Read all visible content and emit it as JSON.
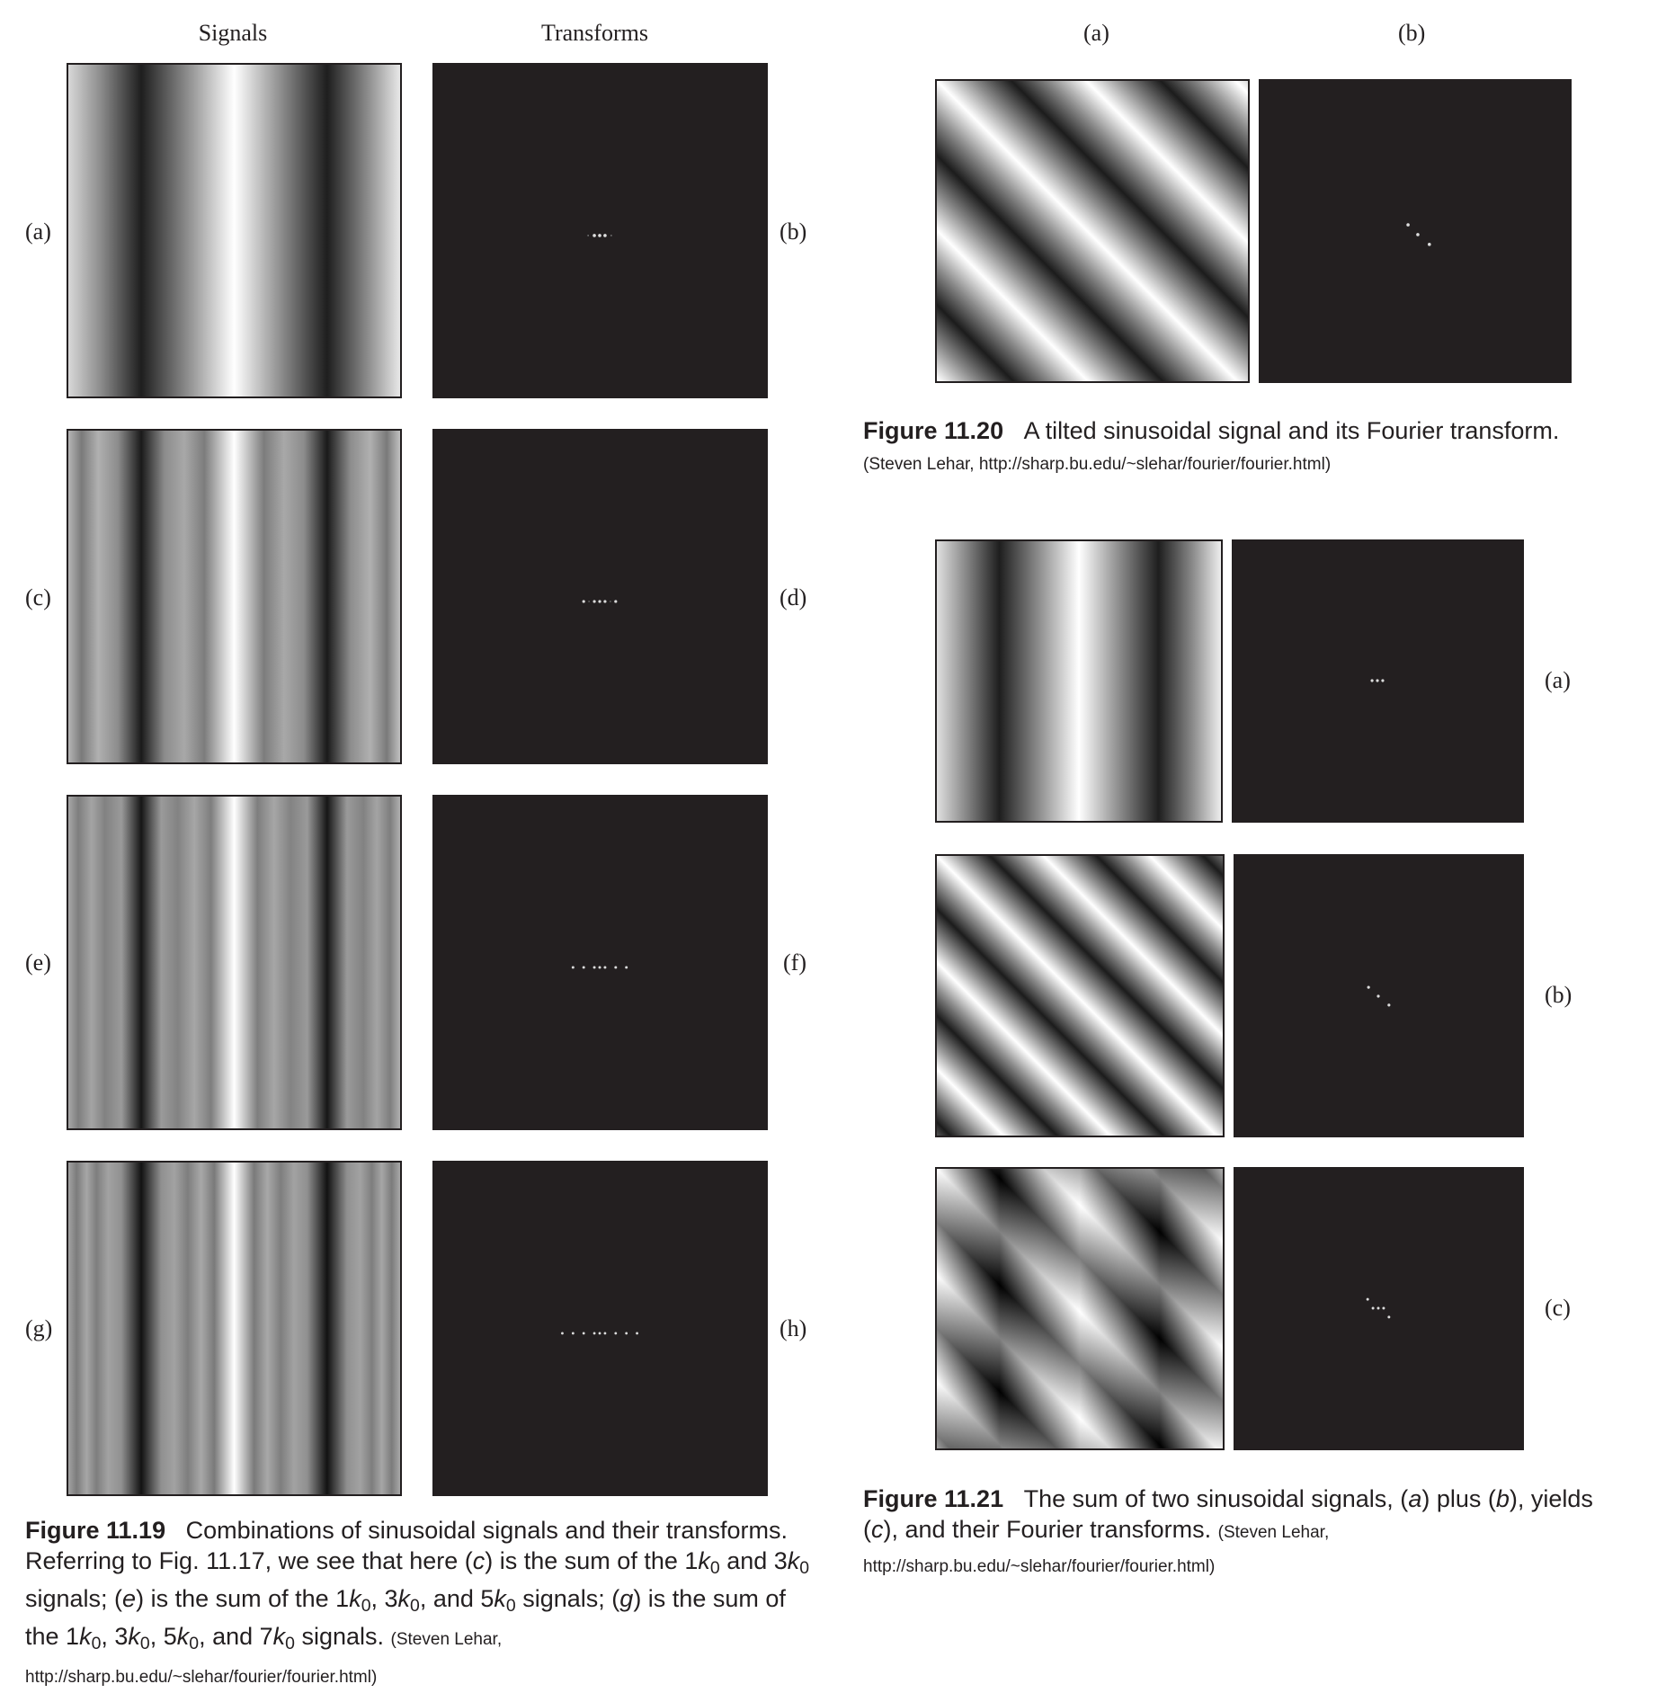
{
  "fig19": {
    "col_headers": {
      "signals": "Signals",
      "transforms": "Transforms"
    },
    "row_labels_left": [
      "(a)",
      "(c)",
      "(e)",
      "(g)"
    ],
    "row_labels_right": [
      "(b)",
      "(d)",
      "(f)",
      "(h)"
    ],
    "caption_label": "Figure 11.19",
    "caption_text": "Combinations of sinusoidal signals and their transforms. Referring to Fig. 11.17, we see that here (c) is the sum of the 1k0 and 3k0 signals; (e) is the sum of the 1k0, 3k0, and 5k0 signals; (g) is the sum of the 1k0, 3k0, 5k0, and 7k0 signals.",
    "caption_parts": {
      "p1": "Combinations of sinusoidal signals and their transforms. Referring to Fig. 11.17, we see that here (",
      "c": "c",
      "p2": ") is the sum of the 1",
      "k": "k",
      "sub0": "0",
      "and": " and",
      "three": "3",
      "signals_e": " signals; (",
      "e": "e",
      "p3": ") is the sum of the 1",
      "comma3": ", 3",
      "and5": ", and 5",
      "signals_g": " signals; (",
      "g": "g",
      "p4": ") is the sum",
      "of_the": "of the 1",
      "comma5": ", 5",
      "and7": ", and 7",
      "end": " signals."
    },
    "credit": "(Steven Lehar, http://sharp.bu.edu/~slehar/fourier/fourier.html)"
  },
  "fig20": {
    "col_headers": [
      "(a)",
      "(b)"
    ],
    "caption_label": "Figure 11.20",
    "caption_text": "A tilted sinusoidal signal and its Fourier transform.",
    "credit": "(Steven Lehar, http://sharp.bu.edu/~slehar/fourier/fourier.html)"
  },
  "fig21": {
    "row_labels": [
      "(a)",
      "(b)",
      "(c)"
    ],
    "caption_label": "Figure 11.21",
    "caption_parts": {
      "p1": "The sum of two sinusoidal signals, (",
      "a": "a",
      "p2": ") plus (",
      "b": "b",
      "p3": "), yields",
      "p4a": "(",
      "c": "c",
      "p4": "), and their Fourier transforms."
    },
    "credit": "(Steven Lehar, http://sharp.bu.edu/~slehar/fourier/fourier.html)"
  },
  "colors": {
    "ink": "#231f20",
    "paper": "#ffffff",
    "spectrum_bg": "#231f20"
  }
}
